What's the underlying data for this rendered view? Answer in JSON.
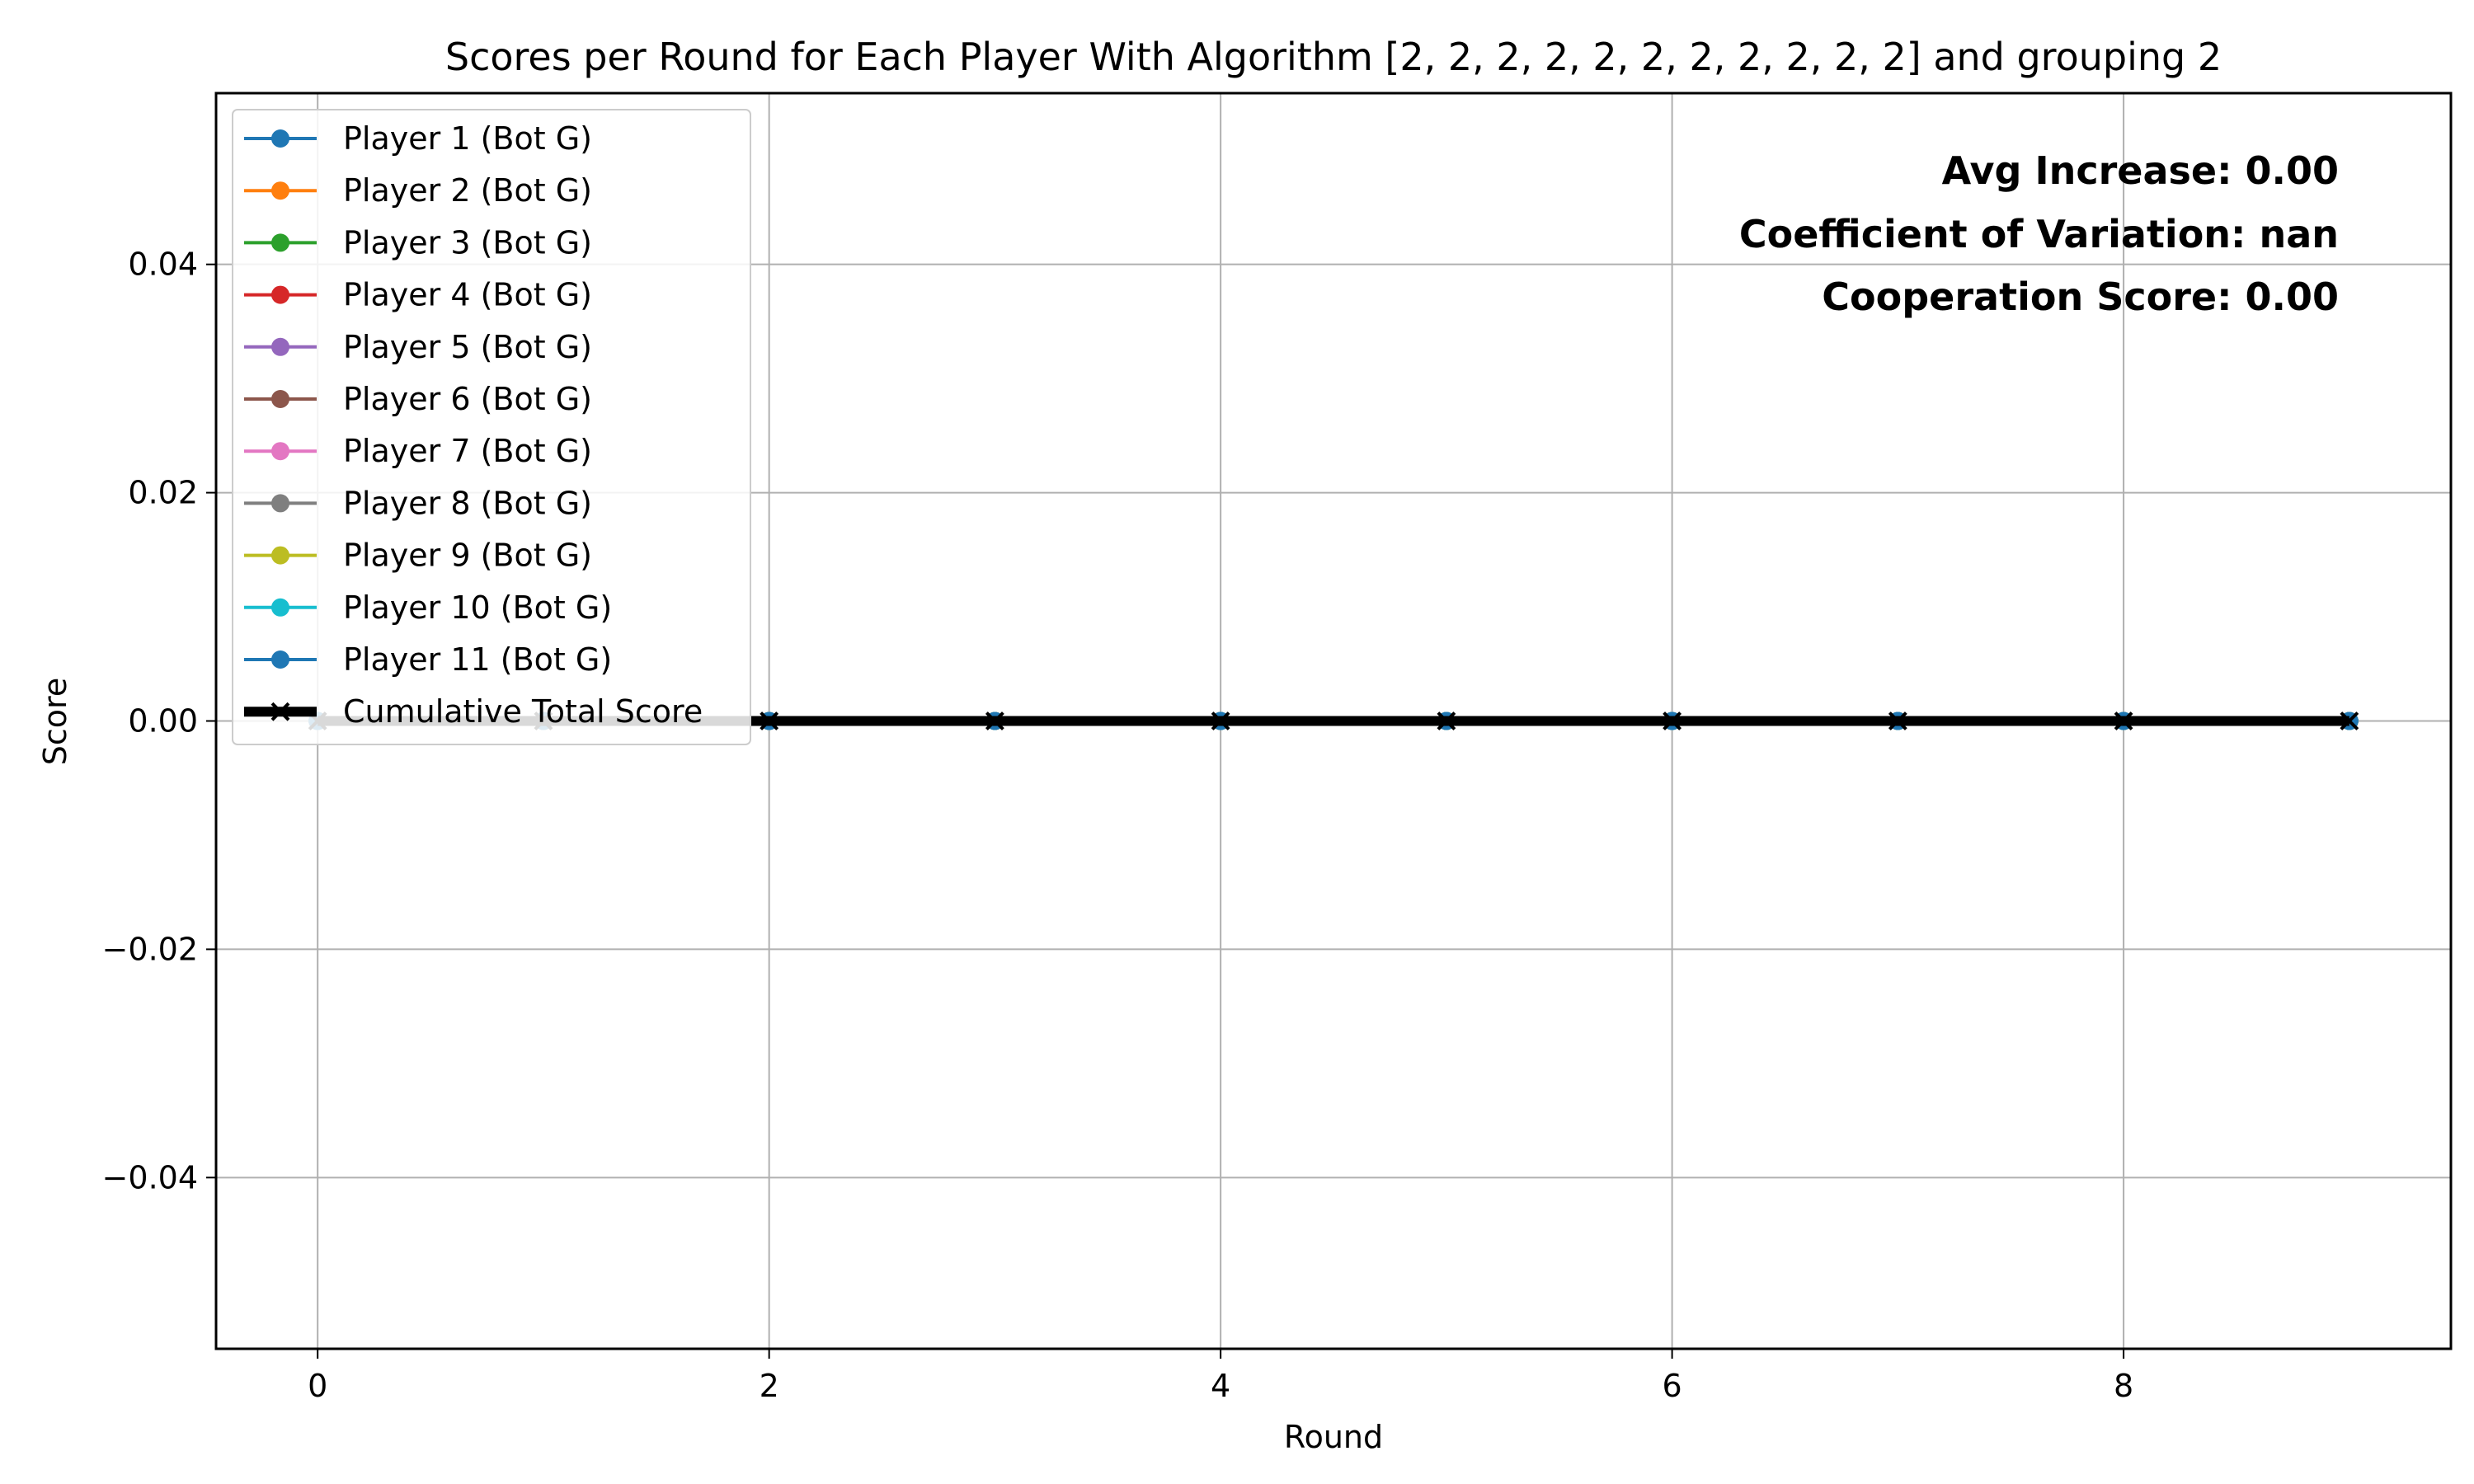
{
  "chart_data": {
    "type": "line",
    "title": "Scores per Round for Each Player With Algorithm [2, 2, 2, 2, 2, 2, 2, 2, 2, 2, 2] and grouping 2",
    "xlabel": "Round",
    "ylabel": "Score",
    "xlim": [
      -0.45,
      9.45
    ],
    "ylim": [
      -0.055,
      0.055
    ],
    "xticks": [
      0,
      2,
      4,
      6,
      8
    ],
    "xtick_labels": [
      "0",
      "2",
      "4",
      "6",
      "8"
    ],
    "yticks": [
      -0.04,
      -0.02,
      0.0,
      0.02,
      0.04
    ],
    "ytick_labels": [
      "−0.04",
      "−0.02",
      "0.00",
      "0.02",
      "0.04"
    ],
    "grid": true,
    "legend_position": "top-left",
    "x": [
      0,
      1,
      2,
      3,
      4,
      5,
      6,
      7,
      8,
      9
    ],
    "series": [
      {
        "name": "Player 1 (Bot G)",
        "color": "#1f77b4",
        "marker": "circle",
        "values": [
          0,
          0,
          0,
          0,
          0,
          0,
          0,
          0,
          0,
          0
        ]
      },
      {
        "name": "Player 2 (Bot G)",
        "color": "#ff7f0e",
        "marker": "circle",
        "values": [
          0,
          0,
          0,
          0,
          0,
          0,
          0,
          0,
          0,
          0
        ]
      },
      {
        "name": "Player 3 (Bot G)",
        "color": "#2ca02c",
        "marker": "circle",
        "values": [
          0,
          0,
          0,
          0,
          0,
          0,
          0,
          0,
          0,
          0
        ]
      },
      {
        "name": "Player 4 (Bot G)",
        "color": "#d62728",
        "marker": "circle",
        "values": [
          0,
          0,
          0,
          0,
          0,
          0,
          0,
          0,
          0,
          0
        ]
      },
      {
        "name": "Player 5 (Bot G)",
        "color": "#9467bd",
        "marker": "circle",
        "values": [
          0,
          0,
          0,
          0,
          0,
          0,
          0,
          0,
          0,
          0
        ]
      },
      {
        "name": "Player 6 (Bot G)",
        "color": "#8c564b",
        "marker": "circle",
        "values": [
          0,
          0,
          0,
          0,
          0,
          0,
          0,
          0,
          0,
          0
        ]
      },
      {
        "name": "Player 7 (Bot G)",
        "color": "#e377c2",
        "marker": "circle",
        "values": [
          0,
          0,
          0,
          0,
          0,
          0,
          0,
          0,
          0,
          0
        ]
      },
      {
        "name": "Player 8 (Bot G)",
        "color": "#7f7f7f",
        "marker": "circle",
        "values": [
          0,
          0,
          0,
          0,
          0,
          0,
          0,
          0,
          0,
          0
        ]
      },
      {
        "name": "Player 9 (Bot G)",
        "color": "#bcbd22",
        "marker": "circle",
        "values": [
          0,
          0,
          0,
          0,
          0,
          0,
          0,
          0,
          0,
          0
        ]
      },
      {
        "name": "Player 10 (Bot G)",
        "color": "#17becf",
        "marker": "circle",
        "values": [
          0,
          0,
          0,
          0,
          0,
          0,
          0,
          0,
          0,
          0
        ]
      },
      {
        "name": "Player 11 (Bot G)",
        "color": "#1f77b4",
        "marker": "circle",
        "values": [
          0,
          0,
          0,
          0,
          0,
          0,
          0,
          0,
          0,
          0
        ]
      },
      {
        "name": "Cumulative Total Score",
        "color": "#000000",
        "marker": "x",
        "thick": true,
        "values": [
          0,
          0,
          0,
          0,
          0,
          0,
          0,
          0,
          0,
          0
        ]
      }
    ],
    "annotations": [
      "Avg Increase: 0.00",
      "Coefficient of Variation: nan",
      "Cooperation Score: 0.00"
    ]
  }
}
